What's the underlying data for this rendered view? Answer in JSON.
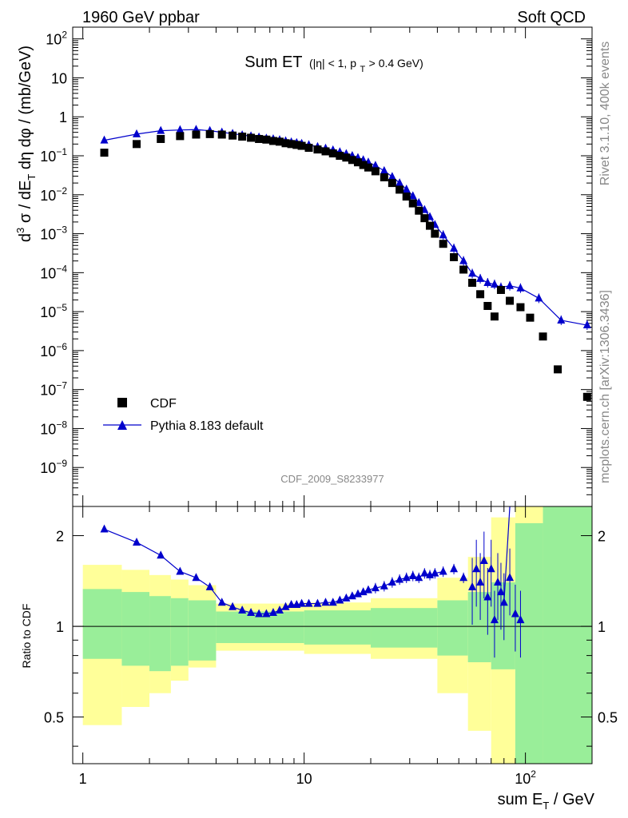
{
  "header": {
    "left": "1960 GeV ppbar",
    "right": "Soft QCD"
  },
  "side_labels": {
    "rivet": "Rivet 3.1.10,  400k events",
    "mcplots": "mcplots.cern.ch [arXiv:1306.3436]"
  },
  "watermark": "CDF_2009_S8233977",
  "title": {
    "main": "Sum ET",
    "cond_a": "(|η| < 1, p",
    "cond_sub": "T",
    "cond_b": " > 0.4 GeV)"
  },
  "ylabel": {
    "a": "d",
    "sup3": "3",
    "b": " σ / dE",
    "subT": "T",
    "c": " dη dφ / (mb/GeV)"
  },
  "ratio_ylabel": "Ratio to CDF",
  "xlabel": {
    "a": "sum E",
    "sub": "T",
    "b": " / GeV"
  },
  "colors": {
    "data": "#000000",
    "mc": "#0000cc",
    "band_inner": "#99ee99",
    "band_outer": "#ffff99"
  },
  "chart_data": {
    "type": "scatter",
    "x_scale": "log",
    "xlim": [
      0.9,
      200
    ],
    "x_ticks": [
      {
        "v": 1,
        "label": "1"
      },
      {
        "v": 10,
        "label": "10"
      },
      {
        "v": 100,
        "label": "10",
        "sup": "2"
      }
    ],
    "main": {
      "y_scale": "log",
      "ylim": [
        1e-10,
        200
      ],
      "y_ticks": [
        {
          "v": 100,
          "base": "10",
          "sup": "2"
        },
        {
          "v": 10,
          "base": "10",
          "sup": ""
        },
        {
          "v": 1,
          "base": "1",
          "sup": ""
        },
        {
          "v": 0.1,
          "base": "10",
          "sup": "−1"
        },
        {
          "v": 0.01,
          "base": "10",
          "sup": "−2"
        },
        {
          "v": 0.001,
          "base": "10",
          "sup": "−3"
        },
        {
          "v": 0.0001,
          "base": "10",
          "sup": "−4"
        },
        {
          "v": 1e-05,
          "base": "10",
          "sup": "−5"
        },
        {
          "v": 1e-06,
          "base": "10",
          "sup": "−6"
        },
        {
          "v": 1e-07,
          "base": "10",
          "sup": "−7"
        },
        {
          "v": 1e-08,
          "base": "10",
          "sup": "−8"
        },
        {
          "v": 1e-09,
          "base": "10",
          "sup": "−9"
        }
      ]
    },
    "ratio": {
      "y_scale": "log",
      "ylim": [
        0.35,
        2.5
      ],
      "y_ticks": [
        {
          "v": 0.5,
          "label": "0.5"
        },
        {
          "v": 1,
          "label": "1"
        },
        {
          "v": 2,
          "label": "2"
        }
      ],
      "bands": [
        {
          "x0": 1.0,
          "x1": 1.5,
          "inner_lo": 0.78,
          "inner_hi": 1.33,
          "outer_lo": 0.47,
          "outer_hi": 1.6
        },
        {
          "x0": 1.5,
          "x1": 2.0,
          "inner_lo": 0.74,
          "inner_hi": 1.3,
          "outer_lo": 0.54,
          "outer_hi": 1.54
        },
        {
          "x0": 2.0,
          "x1": 2.5,
          "inner_lo": 0.71,
          "inner_hi": 1.26,
          "outer_lo": 0.6,
          "outer_hi": 1.48
        },
        {
          "x0": 2.5,
          "x1": 3.0,
          "inner_lo": 0.74,
          "inner_hi": 1.24,
          "outer_lo": 0.66,
          "outer_hi": 1.43
        },
        {
          "x0": 3.0,
          "x1": 4.0,
          "inner_lo": 0.77,
          "inner_hi": 1.22,
          "outer_lo": 0.73,
          "outer_hi": 1.37
        },
        {
          "x0": 4.0,
          "x1": 10.0,
          "inner_lo": 0.88,
          "inner_hi": 1.12,
          "outer_lo": 0.83,
          "outer_hi": 1.19
        },
        {
          "x0": 10.0,
          "x1": 20.0,
          "inner_lo": 0.87,
          "inner_hi": 1.13,
          "outer_lo": 0.81,
          "outer_hi": 1.2
        },
        {
          "x0": 20.0,
          "x1": 40.0,
          "inner_lo": 0.85,
          "inner_hi": 1.15,
          "outer_lo": 0.78,
          "outer_hi": 1.24
        },
        {
          "x0": 40.0,
          "x1": 55.0,
          "inner_lo": 0.8,
          "inner_hi": 1.22,
          "outer_lo": 0.6,
          "outer_hi": 1.45
        },
        {
          "x0": 55.0,
          "x1": 70.0,
          "inner_lo": 0.76,
          "inner_hi": 1.3,
          "outer_lo": 0.45,
          "outer_hi": 1.7
        },
        {
          "x0": 70.0,
          "x1": 90.0,
          "inner_lo": 0.72,
          "inner_hi": 1.4,
          "outer_lo": 0.3,
          "outer_hi": 2.3
        },
        {
          "x0": 90.0,
          "x1": 120.0,
          "inner_lo": 0.3,
          "inner_hi": 2.2,
          "outer_lo": 0.3,
          "outer_hi": 2.5
        },
        {
          "x0": 120.0,
          "x1": 200.0,
          "inner_lo": 0.3,
          "inner_hi": 2.5,
          "outer_lo": 0.3,
          "outer_hi": 2.5
        }
      ]
    },
    "series": [
      {
        "name": "CDF",
        "style": "square",
        "points": [
          [
            1.25,
            0.12
          ],
          [
            1.75,
            0.2
          ],
          [
            2.25,
            0.27
          ],
          [
            2.75,
            0.32
          ],
          [
            3.25,
            0.35
          ],
          [
            3.75,
            0.36
          ],
          [
            4.25,
            0.35
          ],
          [
            4.75,
            0.33
          ],
          [
            5.25,
            0.31
          ],
          [
            5.75,
            0.29
          ],
          [
            6.25,
            0.27
          ],
          [
            6.75,
            0.26
          ],
          [
            7.25,
            0.24
          ],
          [
            7.75,
            0.23
          ],
          [
            8.25,
            0.21
          ],
          [
            8.75,
            0.2
          ],
          [
            9.25,
            0.19
          ],
          [
            9.75,
            0.18
          ],
          [
            10.5,
            0.16
          ],
          [
            11.5,
            0.145
          ],
          [
            12.5,
            0.13
          ],
          [
            13.5,
            0.115
          ],
          [
            14.5,
            0.1
          ],
          [
            15.5,
            0.09
          ],
          [
            16.5,
            0.078
          ],
          [
            17.5,
            0.068
          ],
          [
            18.5,
            0.058
          ],
          [
            19.5,
            0.05
          ],
          [
            21,
            0.04
          ],
          [
            23,
            0.028
          ],
          [
            25,
            0.02
          ],
          [
            27,
            0.0135
          ],
          [
            29,
            0.009
          ],
          [
            31,
            0.006
          ],
          [
            33,
            0.0039
          ],
          [
            35,
            0.0025
          ],
          [
            37,
            0.0016
          ],
          [
            39,
            0.001
          ],
          [
            42.5,
            0.00055
          ],
          [
            47.5,
            0.00025
          ],
          [
            52.5,
            0.00012
          ],
          [
            57.5,
            5.5e-05
          ],
          [
            62.5,
            2.8e-05
          ],
          [
            67.5,
            1.4e-05
          ],
          [
            72.5,
            7.5e-06
          ],
          [
            77.5,
            3.6e-05
          ],
          [
            85,
            1.9e-05
          ],
          [
            95,
            1.3e-05
          ],
          [
            105,
            7e-06
          ],
          [
            120,
            2.3e-06
          ],
          [
            140,
            3.3e-07
          ],
          [
            190,
            6.5e-08
          ]
        ]
      },
      {
        "name": "Pythia 8.183 default",
        "style": "triangle-line",
        "points": [
          [
            1.25,
            0.25
          ],
          [
            1.75,
            0.36
          ],
          [
            2.25,
            0.44
          ],
          [
            2.75,
            0.46
          ],
          [
            3.25,
            0.47
          ],
          [
            3.75,
            0.44
          ],
          [
            4.25,
            0.4
          ],
          [
            4.75,
            0.37
          ],
          [
            5.25,
            0.34
          ],
          [
            5.75,
            0.32
          ],
          [
            6.25,
            0.3
          ],
          [
            6.75,
            0.28
          ],
          [
            7.25,
            0.27
          ],
          [
            7.75,
            0.255
          ],
          [
            8.25,
            0.24
          ],
          [
            8.75,
            0.225
          ],
          [
            9.25,
            0.215
          ],
          [
            9.75,
            0.205
          ],
          [
            10.5,
            0.19
          ],
          [
            11.5,
            0.17
          ],
          [
            12.5,
            0.155
          ],
          [
            13.5,
            0.14
          ],
          [
            14.5,
            0.125
          ],
          [
            15.5,
            0.112
          ],
          [
            16.5,
            0.1
          ],
          [
            17.5,
            0.089
          ],
          [
            18.5,
            0.078
          ],
          [
            19.5,
            0.068
          ],
          [
            21,
            0.056
          ],
          [
            23,
            0.041
          ],
          [
            25,
            0.029
          ],
          [
            27,
            0.02
          ],
          [
            29,
            0.0138
          ],
          [
            31,
            0.0093
          ],
          [
            33,
            0.0062
          ],
          [
            35,
            0.0041
          ],
          [
            37,
            0.0027
          ],
          [
            39,
            0.0017
          ],
          [
            42.5,
            0.00092
          ],
          [
            47.5,
            0.00042
          ],
          [
            52.5,
            0.0002
          ],
          [
            57.5,
            9.5e-05
          ],
          [
            62.5,
            7e-05
          ],
          [
            67.5,
            5.5e-05
          ],
          [
            72.5,
            5e-05
          ],
          [
            77.5,
            4.2e-05
          ],
          [
            85,
            4.6e-05
          ],
          [
            95,
            4e-05
          ],
          [
            115,
            2.2e-05
          ],
          [
            145,
            6e-06
          ],
          [
            190,
            4.5e-06
          ]
        ]
      }
    ],
    "ratio_series": {
      "name": "Pythia 8.183 default / CDF",
      "points": [
        [
          1.25,
          2.1
        ],
        [
          1.75,
          1.9
        ],
        [
          2.25,
          1.72
        ],
        [
          2.75,
          1.52
        ],
        [
          3.25,
          1.45
        ],
        [
          3.75,
          1.35
        ],
        [
          4.25,
          1.2
        ],
        [
          4.75,
          1.16
        ],
        [
          5.25,
          1.13
        ],
        [
          5.75,
          1.11
        ],
        [
          6.25,
          1.1
        ],
        [
          6.75,
          1.1
        ],
        [
          7.25,
          1.11
        ],
        [
          7.75,
          1.13
        ],
        [
          8.25,
          1.16
        ],
        [
          8.75,
          1.18
        ],
        [
          9.25,
          1.18
        ],
        [
          9.75,
          1.19
        ],
        [
          10.5,
          1.19
        ],
        [
          11.5,
          1.19
        ],
        [
          12.5,
          1.2
        ],
        [
          13.5,
          1.2
        ],
        [
          14.5,
          1.22
        ],
        [
          15.5,
          1.24
        ],
        [
          16.5,
          1.26
        ],
        [
          17.5,
          1.28
        ],
        [
          18.5,
          1.3
        ],
        [
          19.5,
          1.32
        ],
        [
          21,
          1.34
        ],
        [
          23,
          1.36
        ],
        [
          25,
          1.4
        ],
        [
          27,
          1.43
        ],
        [
          29,
          1.45
        ],
        [
          31,
          1.47
        ],
        [
          33,
          1.45
        ],
        [
          35,
          1.5
        ],
        [
          37,
          1.48
        ],
        [
          39,
          1.5
        ],
        [
          42.5,
          1.52
        ],
        [
          47.5,
          1.55
        ],
        [
          52.5,
          1.45
        ],
        [
          57.5,
          1.35
        ],
        [
          60,
          1.55
        ],
        [
          62.5,
          1.4
        ],
        [
          65,
          1.65
        ],
        [
          67.5,
          1.25
        ],
        [
          70,
          1.55
        ],
        [
          72.5,
          1.05
        ],
        [
          75,
          1.4
        ],
        [
          77.5,
          1.3
        ],
        [
          80,
          1.2
        ],
        [
          85,
          1.45
        ],
        [
          90,
          1.1
        ],
        [
          95,
          1.05
        ]
      ]
    }
  }
}
